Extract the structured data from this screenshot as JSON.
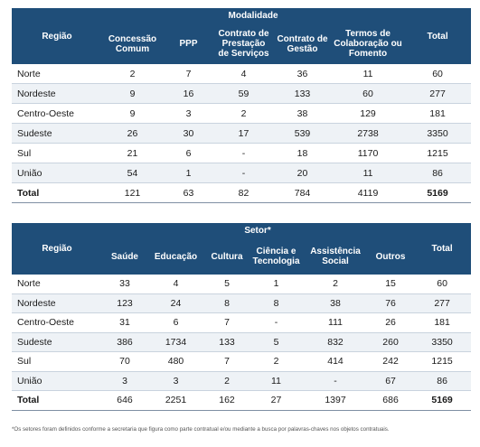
{
  "table1": {
    "group_label": "Modalidade",
    "region_header": "Região",
    "total_header": "Total",
    "columns": [
      "Concessão Comum",
      "PPP",
      "Contrato de Prestação de Serviços",
      "Contrato de Gestão",
      "Termos de Colaboração ou Fomento"
    ],
    "rows": [
      {
        "region": "Norte",
        "values": [
          "2",
          "7",
          "4",
          "36",
          "11"
        ],
        "total": "60"
      },
      {
        "region": "Nordeste",
        "values": [
          "9",
          "16",
          "59",
          "133",
          "60"
        ],
        "total": "277"
      },
      {
        "region": "Centro-Oeste",
        "values": [
          "9",
          "3",
          "2",
          "38",
          "129"
        ],
        "total": "181"
      },
      {
        "region": "Sudeste",
        "values": [
          "26",
          "30",
          "17",
          "539",
          "2738"
        ],
        "total": "3350"
      },
      {
        "region": "Sul",
        "values": [
          "21",
          "6",
          "-",
          "18",
          "1170"
        ],
        "total": "1215"
      },
      {
        "region": "União",
        "values": [
          "54",
          "1",
          "-",
          "20",
          "11"
        ],
        "total": "86"
      }
    ],
    "total_row": {
      "label": "Total",
      "values": [
        "121",
        "63",
        "82",
        "784",
        "4119"
      ],
      "total": "5169"
    }
  },
  "table2": {
    "group_label": "Setor*",
    "region_header": "Região",
    "total_header": "Total",
    "columns": [
      "Saúde",
      "Educação",
      "Cultura",
      "Ciência e Tecnologia",
      "Assistência Social",
      "Outros"
    ],
    "rows": [
      {
        "region": "Norte",
        "values": [
          "33",
          "4",
          "5",
          "1",
          "2",
          "15"
        ],
        "total": "60"
      },
      {
        "region": "Nordeste",
        "values": [
          "123",
          "24",
          "8",
          "8",
          "38",
          "76"
        ],
        "total": "277"
      },
      {
        "region": "Centro-Oeste",
        "values": [
          "31",
          "6",
          "7",
          "-",
          "111",
          "26"
        ],
        "total": "181"
      },
      {
        "region": "Sudeste",
        "values": [
          "386",
          "1734",
          "133",
          "5",
          "832",
          "260"
        ],
        "total": "3350"
      },
      {
        "region": "Sul",
        "values": [
          "70",
          "480",
          "7",
          "2",
          "414",
          "242"
        ],
        "total": "1215"
      },
      {
        "region": "União",
        "values": [
          "3",
          "3",
          "2",
          "11",
          "-",
          "67"
        ],
        "total": "86"
      }
    ],
    "total_row": {
      "label": "Total",
      "values": [
        "646",
        "2251",
        "162",
        "27",
        "1397",
        "686"
      ],
      "total": "5169"
    }
  },
  "footnote": "*Os setores foram definidos conforme a secretaria que figura como parte contratual e/ou mediante a busca por palavras-chaves nos objetos contratuais.",
  "colors": {
    "header_bg": "#1f4e79",
    "alt_row_bg": "#eef2f6"
  }
}
